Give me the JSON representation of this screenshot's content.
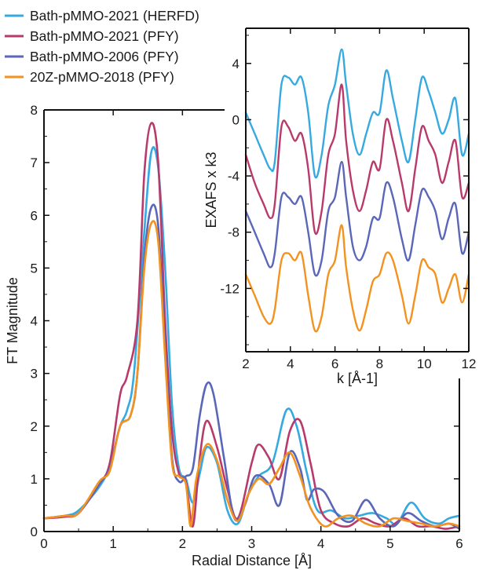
{
  "legend": {
    "entries": [
      {
        "label": "Bath-pMMO-2021 (HERFD)",
        "color": "#36a9e1"
      },
      {
        "label": "Bath-pMMO-2021 (PFY)",
        "color": "#b83a6b"
      },
      {
        "label": "Bath-pMMO-2006 (PFY)",
        "color": "#5a66b8"
      },
      {
        "label": "20Z-pMMO-2018 (PFY)",
        "color": "#f3921f"
      }
    ]
  },
  "chart_data": [
    {
      "type": "line",
      "title": "",
      "xlabel": "Radial Distance [Å]",
      "ylabel": "FT Magnitude",
      "xlim": [
        0,
        6
      ],
      "ylim": [
        0,
        8
      ],
      "xticks": [
        "0",
        "1",
        "2",
        "3",
        "4",
        "5",
        "6"
      ],
      "yticks": [
        "0",
        "1",
        "2",
        "3",
        "4",
        "5",
        "6",
        "7",
        "8"
      ],
      "grid": false,
      "series": [
        {
          "name": "Bath-pMMO-2021 (HERFD)",
          "color": "#36a9e1",
          "x": [
            0,
            0.3,
            0.5,
            0.8,
            0.95,
            1.1,
            1.2,
            1.3,
            1.45,
            1.55,
            1.65,
            1.75,
            1.85,
            1.95,
            2.05,
            2.15,
            2.25,
            2.35,
            2.5,
            2.65,
            2.8,
            2.95,
            3.1,
            3.3,
            3.5,
            3.65,
            3.8,
            3.95,
            4.15,
            4.35,
            4.55,
            4.75,
            4.95,
            5.1,
            5.3,
            5.5,
            5.7,
            5.85,
            6
          ],
          "y": [
            0.25,
            0.3,
            0.4,
            0.85,
            1.25,
            2.0,
            2.3,
            3.0,
            5.7,
            7.2,
            6.9,
            5.0,
            2.4,
            1.2,
            1.0,
            0.55,
            1.1,
            1.6,
            1.3,
            0.4,
            0.15,
            0.7,
            1.05,
            1.3,
            2.3,
            2.0,
            1.1,
            0.4,
            0.4,
            0.25,
            0.3,
            0.35,
            0.25,
            0.15,
            0.55,
            0.25,
            0.15,
            0.25,
            0.3
          ]
        },
        {
          "name": "Bath-pMMO-2021 (PFY)",
          "color": "#b83a6b",
          "x": [
            0,
            0.3,
            0.5,
            0.8,
            0.95,
            1.1,
            1.2,
            1.35,
            1.45,
            1.55,
            1.65,
            1.75,
            1.85,
            1.95,
            2.05,
            2.15,
            2.25,
            2.35,
            2.5,
            2.65,
            2.8,
            3.0,
            3.1,
            3.25,
            3.4,
            3.55,
            3.7,
            3.85,
            4.0,
            4.2,
            4.4,
            4.6,
            4.8,
            5.0,
            5.2,
            5.4,
            5.6,
            5.8,
            6
          ],
          "y": [
            0.25,
            0.28,
            0.35,
            0.9,
            1.3,
            2.6,
            2.95,
            4.0,
            6.8,
            7.75,
            7.0,
            4.0,
            1.9,
            1.1,
            0.95,
            0.1,
            1.4,
            2.1,
            1.6,
            0.8,
            0.25,
            1.3,
            1.65,
            1.4,
            1.0,
            1.9,
            2.1,
            1.3,
            0.4,
            0.15,
            0.1,
            0.25,
            0.15,
            0.1,
            0.25,
            0.1,
            0.1,
            0.05,
            0.1
          ]
        },
        {
          "name": "Bath-pMMO-2006 (PFY)",
          "color": "#5a66b8",
          "x": [
            0,
            0.3,
            0.5,
            0.8,
            0.95,
            1.1,
            1.25,
            1.35,
            1.45,
            1.55,
            1.65,
            1.75,
            1.85,
            1.95,
            2.05,
            2.15,
            2.25,
            2.35,
            2.45,
            2.6,
            2.75,
            2.9,
            3.05,
            3.25,
            3.4,
            3.55,
            3.7,
            3.8,
            3.9,
            4.05,
            4.25,
            4.45,
            4.65,
            4.85,
            5.05,
            5.25,
            5.45,
            5.65,
            5.85,
            6
          ],
          "y": [
            0.25,
            0.3,
            0.35,
            0.9,
            1.2,
            2.0,
            2.2,
            3.0,
            5.2,
            6.15,
            5.8,
            3.5,
            1.4,
            0.95,
            1.05,
            1.2,
            2.2,
            2.8,
            2.6,
            1.4,
            0.25,
            0.5,
            1.05,
            0.9,
            0.5,
            1.5,
            1.2,
            0.6,
            0.8,
            0.75,
            0.3,
            0.2,
            0.6,
            0.25,
            0.1,
            0.35,
            0.2,
            0.1,
            0.15,
            0.05
          ]
        },
        {
          "name": "20Z-pMMO-2018 (PFY)",
          "color": "#f3921f",
          "x": [
            0,
            0.3,
            0.5,
            0.8,
            0.95,
            1.1,
            1.25,
            1.35,
            1.45,
            1.55,
            1.65,
            1.75,
            1.85,
            1.95,
            2.05,
            2.12,
            2.2,
            2.35,
            2.5,
            2.65,
            2.8,
            2.95,
            3.1,
            3.25,
            3.4,
            3.55,
            3.7,
            3.85,
            4.05,
            4.25,
            4.45,
            4.65,
            4.85,
            5.05,
            5.25,
            5.45,
            5.65,
            5.85,
            6
          ],
          "y": [
            0.25,
            0.3,
            0.35,
            0.95,
            1.15,
            2.0,
            2.2,
            3.0,
            5.0,
            5.85,
            5.5,
            3.3,
            1.3,
            1.05,
            0.9,
            0.1,
            1.0,
            1.65,
            1.35,
            0.6,
            0.2,
            0.7,
            1.0,
            0.9,
            1.2,
            1.5,
            1.05,
            0.45,
            0.1,
            0.25,
            0.3,
            0.15,
            0.1,
            0.25,
            0.2,
            0.15,
            0.1,
            0.15,
            0.1
          ]
        }
      ]
    },
    {
      "type": "line",
      "title": "",
      "xlabel": "k [Å-1]",
      "ylabel": "EXAFS x k3",
      "xlim": [
        2,
        12
      ],
      "ylim": [
        -16.5,
        6.5
      ],
      "xticks": [
        "2",
        "4",
        "6",
        "8",
        "10",
        "12"
      ],
      "yticks": [
        "4",
        "0",
        "-4",
        "-8",
        "-12"
      ],
      "grid": false,
      "series": [
        {
          "name": "Bath-pMMO-2021 (HERFD)",
          "color": "#36a9e1",
          "x": [
            2,
            2.4,
            2.8,
            3.1,
            3.3,
            3.6,
            3.9,
            4.2,
            4.5,
            4.8,
            5.1,
            5.4,
            5.7,
            6.0,
            6.3,
            6.5,
            6.8,
            7.1,
            7.4,
            7.7,
            8.0,
            8.3,
            8.6,
            9.0,
            9.3,
            9.6,
            9.9,
            10.2,
            10.5,
            10.8,
            11.1,
            11.4,
            11.7,
            12
          ],
          "y": [
            0.5,
            -1.0,
            -2.5,
            -3.5,
            -3.0,
            2.5,
            3.0,
            2.5,
            3.0,
            0.5,
            -4.0,
            -2.5,
            1.0,
            2.5,
            5.0,
            2.5,
            -1.0,
            -2.5,
            -1.0,
            0.5,
            0.5,
            3.5,
            1.5,
            -1.5,
            -3.0,
            0.0,
            3.0,
            2.0,
            0.5,
            -1.0,
            0.0,
            1.5,
            -2.5,
            -1.0
          ]
        },
        {
          "name": "Bath-pMMO-2021 (PFY)",
          "color": "#b83a6b",
          "x": [
            2,
            2.4,
            2.8,
            3.1,
            3.3,
            3.6,
            3.9,
            4.2,
            4.5,
            4.8,
            5.1,
            5.4,
            5.7,
            6.0,
            6.3,
            6.5,
            6.8,
            7.1,
            7.4,
            7.7,
            8.0,
            8.3,
            8.6,
            9.0,
            9.3,
            9.6,
            9.9,
            10.2,
            10.5,
            10.8,
            11.1,
            11.4,
            11.7,
            12
          ],
          "y": [
            -2.5,
            -4.5,
            -6.0,
            -7.0,
            -6.0,
            -0.5,
            -0.5,
            -1.5,
            -1.0,
            -3.5,
            -8.0,
            -6.5,
            -2.5,
            -1.0,
            2.5,
            -1.5,
            -5.0,
            -6.5,
            -5.0,
            -3.0,
            -3.5,
            0.0,
            -1.5,
            -4.5,
            -6.5,
            -3.5,
            -0.5,
            -1.5,
            -2.5,
            -4.5,
            -3.0,
            -1.5,
            -5.5,
            -4.5
          ]
        },
        {
          "name": "Bath-pMMO-2006 (PFY)",
          "color": "#5a66b8",
          "x": [
            2,
            2.4,
            2.8,
            3.1,
            3.3,
            3.6,
            3.9,
            4.2,
            4.5,
            4.8,
            5.1,
            5.4,
            5.7,
            6.0,
            6.3,
            6.5,
            6.8,
            7.1,
            7.4,
            7.7,
            8.0,
            8.3,
            8.6,
            9.0,
            9.3,
            9.6,
            9.9,
            10.2,
            10.5,
            10.8,
            11.1,
            11.4,
            11.7,
            12
          ],
          "y": [
            -6.5,
            -8.0,
            -9.5,
            -10.5,
            -9.5,
            -5.5,
            -5.5,
            -6.0,
            -5.5,
            -8.0,
            -11.0,
            -10.0,
            -6.5,
            -5.5,
            -3.0,
            -5.5,
            -9.0,
            -10.0,
            -9.0,
            -7.0,
            -7.0,
            -4.5,
            -5.5,
            -8.5,
            -10.0,
            -7.5,
            -5.0,
            -5.5,
            -6.5,
            -8.5,
            -7.0,
            -6.0,
            -9.5,
            -8.0
          ]
        },
        {
          "name": "20Z-pMMO-2018 (PFY)",
          "color": "#f3921f",
          "x": [
            2,
            2.4,
            2.8,
            3.1,
            3.3,
            3.6,
            3.9,
            4.2,
            4.5,
            4.8,
            5.1,
            5.4,
            5.7,
            6.0,
            6.3,
            6.5,
            6.8,
            7.1,
            7.4,
            7.7,
            8.0,
            8.3,
            8.6,
            9.0,
            9.3,
            9.6,
            9.9,
            10.2,
            10.5,
            10.8,
            11.1,
            11.4,
            11.7,
            12
          ],
          "y": [
            -11.0,
            -12.5,
            -14.0,
            -14.5,
            -13.5,
            -10.0,
            -9.5,
            -10.0,
            -9.5,
            -12.5,
            -15.0,
            -14.0,
            -11.0,
            -10.0,
            -7.5,
            -10.5,
            -13.5,
            -15.0,
            -13.5,
            -11.5,
            -11.0,
            -9.5,
            -10.0,
            -12.5,
            -14.5,
            -12.5,
            -10.0,
            -10.5,
            -11.0,
            -13.0,
            -12.0,
            -11.0,
            -13.0,
            -11.0
          ]
        }
      ]
    }
  ]
}
